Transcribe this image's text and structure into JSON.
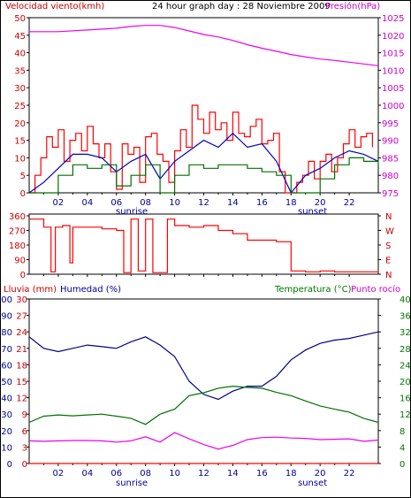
{
  "colors": {
    "wind": "#ff0000",
    "pressure": "#ee00ee",
    "humidity": "#00008b",
    "temperature": "#007000",
    "dewpoint": "#ee00ee",
    "rain": "#ff0000",
    "average": "#0000cc",
    "axis": "#000000",
    "text_red": "#cc0000",
    "text_blue": "#000099",
    "text_green": "#007700",
    "text_magenta": "#cc00cc"
  },
  "labels": {
    "title": "24 hour graph day : 28 Noviembre 2009",
    "wind_speed": "Velocidad viento(kmh)",
    "pressure": "Presión(hPa)",
    "rain": "Lluvia (mm)",
    "humidity": "Humedad (%)",
    "temperature": "Temperatura (°C)",
    "dewpoint": "Punto rocío",
    "sunrise": "sunrise",
    "sunset": "sunset"
  },
  "chart_data": [
    {
      "type": "line",
      "panel": "wind_pressure",
      "x_ticks": [
        "02",
        "04",
        "06",
        "08",
        "10",
        "12",
        "14",
        "16",
        "18",
        "20",
        "22"
      ],
      "y_left_ticks": [
        "0",
        "5",
        "10",
        "15",
        "20",
        "25",
        "30",
        "35",
        "40",
        "45",
        "50"
      ],
      "y_right_ticks": [
        "975",
        "980",
        "985",
        "990",
        "995",
        "1000",
        "1005",
        "1010",
        "1015",
        "1020",
        "1025"
      ],
      "ylim_left": [
        0,
        50
      ],
      "ylim_right": [
        975,
        1025
      ],
      "xlim": [
        0,
        24
      ],
      "series": [
        {
          "name": "Presión(hPa)",
          "axis": "right",
          "x": [
            0,
            2,
            4,
            6,
            7,
            8,
            9,
            10,
            11,
            12,
            13,
            14,
            15,
            16,
            17,
            18,
            19,
            20,
            21,
            22,
            23,
            24
          ],
          "values": [
            1021,
            1021,
            1021.5,
            1022,
            1022.5,
            1022.8,
            1022.8,
            1022.2,
            1021.2,
            1020.2,
            1019.5,
            1018.5,
            1017.3,
            1016.3,
            1015.4,
            1014.5,
            1013.8,
            1013.2,
            1012.8,
            1012.3,
            1011.8,
            1011.3
          ]
        },
        {
          "name": "Velocidad viento(kmh)",
          "axis": "left",
          "x": [
            0.0,
            0.4,
            0.8,
            1.2,
            1.6,
            2.0,
            2.4,
            2.8,
            3.2,
            3.6,
            4.0,
            4.4,
            4.8,
            5.2,
            5.6,
            6.0,
            6.4,
            6.8,
            7.2,
            7.6,
            8.0,
            8.4,
            8.8,
            9.2,
            9.6,
            10.0,
            10.4,
            10.8,
            11.2,
            11.6,
            12.0,
            12.4,
            12.8,
            13.2,
            13.6,
            14.0,
            14.4,
            14.8,
            15.2,
            15.6,
            16.0,
            16.4,
            16.8,
            17.2,
            17.6,
            18.0,
            18.4,
            18.8,
            19.2,
            19.6,
            20.0,
            20.4,
            20.8,
            21.2,
            21.6,
            22.0,
            22.4,
            22.8,
            23.2,
            23.6
          ],
          "values": [
            0,
            5,
            10,
            16,
            13,
            18,
            9,
            15,
            17,
            12,
            19,
            14,
            10,
            14,
            6,
            1,
            14,
            11,
            13,
            3,
            16,
            17,
            11,
            9,
            3,
            12,
            18,
            13,
            25,
            21,
            17,
            23,
            18,
            20,
            15,
            23,
            17,
            16,
            19,
            21,
            14,
            15,
            17,
            6,
            0,
            0,
            3,
            5,
            9,
            4,
            9,
            11,
            6,
            10,
            14,
            18,
            13,
            16,
            17,
            13
          ]
        },
        {
          "name": "average",
          "axis": "left",
          "x": [
            0,
            1,
            2,
            3,
            4,
            5,
            6,
            7,
            8,
            9,
            10,
            11,
            12,
            13,
            14,
            15,
            16,
            17,
            18,
            19,
            20,
            21,
            22,
            23,
            24
          ],
          "values": [
            0,
            3,
            7,
            11,
            11,
            10,
            6,
            9,
            11,
            4,
            9,
            12,
            15,
            13,
            17,
            13,
            14,
            9,
            0,
            5,
            7,
            10,
            12,
            11,
            9
          ]
        },
        {
          "name": "gust",
          "axis": "left",
          "x": [
            0,
            1,
            2,
            3,
            4,
            5,
            6,
            7,
            8,
            9,
            10,
            11,
            12,
            13,
            14,
            15,
            16,
            17,
            18,
            19,
            20,
            21,
            22,
            23,
            24
          ],
          "values": [
            0,
            0,
            5,
            8,
            7,
            8,
            2,
            5,
            8,
            0,
            5,
            8,
            7,
            8,
            8,
            7,
            6,
            5,
            0,
            0,
            4,
            8,
            10,
            9,
            8
          ]
        }
      ]
    },
    {
      "type": "line",
      "panel": "wind_direction",
      "y_left_ticks": [
        "360",
        "270",
        "180",
        "90",
        "0"
      ],
      "y_right_ticks": [
        "N",
        "W",
        "S",
        "E",
        "N"
      ],
      "ylim": [
        0,
        360
      ],
      "xlim": [
        0,
        24
      ],
      "series": [
        {
          "name": "wind_direction",
          "x": [
            0,
            0.5,
            1,
            1.5,
            1.8,
            2.0,
            2.3,
            2.8,
            3.0,
            3.5,
            4,
            5,
            6,
            6.5,
            7,
            7.5,
            8,
            8.5,
            9,
            9.5,
            10,
            11,
            12,
            13,
            14,
            15,
            16,
            17,
            17.8,
            18,
            18.5,
            19,
            20,
            21,
            22,
            23,
            24
          ],
          "values": [
            340,
            340,
            290,
            15,
            290,
            290,
            300,
            70,
            290,
            290,
            290,
            280,
            270,
            10,
            340,
            20,
            340,
            10,
            10,
            340,
            300,
            290,
            300,
            270,
            250,
            210,
            210,
            200,
            200,
            20,
            20,
            15,
            20,
            15,
            15,
            15,
            20
          ]
        }
      ]
    },
    {
      "type": "line",
      "panel": "humidity_temperature",
      "y_left_ticks": [
        "0",
        "10",
        "20",
        "30",
        "40",
        "50",
        "60",
        "70",
        "80",
        "90",
        "100"
      ],
      "y_rain_ticks": [
        "0",
        "3",
        "6",
        "9",
        "12",
        "15",
        "18",
        "21",
        "24",
        "27",
        "30"
      ],
      "y_right_ticks": [
        "0",
        "4",
        "8",
        "12",
        "16",
        "20",
        "24",
        "28",
        "32",
        "36",
        "40"
      ],
      "ylim_left": [
        0,
        100
      ],
      "ylim_right": [
        0,
        40
      ],
      "xlim": [
        0,
        24
      ],
      "series": [
        {
          "name": "Humedad (%)",
          "axis": "left",
          "x": [
            0,
            1,
            2,
            3,
            4,
            5,
            6,
            7,
            8,
            9,
            10,
            11,
            12,
            13,
            14,
            15,
            16,
            17,
            18,
            19,
            20,
            21,
            22,
            23,
            24
          ],
          "values": [
            77,
            70,
            68,
            70,
            72,
            71,
            70,
            74,
            77,
            72,
            65,
            50,
            42,
            39,
            44,
            47,
            47,
            53,
            63,
            69,
            73,
            75,
            76,
            78,
            80
          ]
        },
        {
          "name": "Temperatura (°C)",
          "axis": "right",
          "x": [
            0,
            1,
            2,
            3,
            4,
            5,
            6,
            7,
            8,
            9,
            10,
            11,
            12,
            13,
            14,
            15,
            16,
            17,
            18,
            19,
            20,
            21,
            22,
            23,
            24
          ],
          "values": [
            10,
            11.5,
            11.8,
            11.6,
            11.8,
            12,
            11.5,
            11,
            9.5,
            12,
            13.2,
            16.5,
            17.2,
            18.3,
            18.8,
            18.5,
            18.3,
            17.3,
            16.5,
            15.2,
            14,
            13.2,
            12.5,
            11,
            10
          ]
        },
        {
          "name": "Punto rocío",
          "axis": "right",
          "x": [
            0,
            1,
            2,
            3,
            4,
            5,
            6,
            7,
            8,
            9,
            10,
            11,
            12,
            13,
            14,
            15,
            16,
            17,
            18,
            19,
            20,
            21,
            22,
            23,
            24
          ],
          "values": [
            5.5,
            5.4,
            5.5,
            5.6,
            5.6,
            5.5,
            5.2,
            5.5,
            6.5,
            5.2,
            7.5,
            6,
            4.6,
            3.5,
            4.4,
            5.8,
            6.3,
            6.4,
            6.2,
            6.1,
            5.8,
            5.9,
            6,
            5.4,
            5.7
          ]
        },
        {
          "name": "Lluvia (mm)",
          "axis": "rain",
          "x": [
            0,
            24
          ],
          "values": [
            0,
            0
          ]
        }
      ]
    }
  ]
}
